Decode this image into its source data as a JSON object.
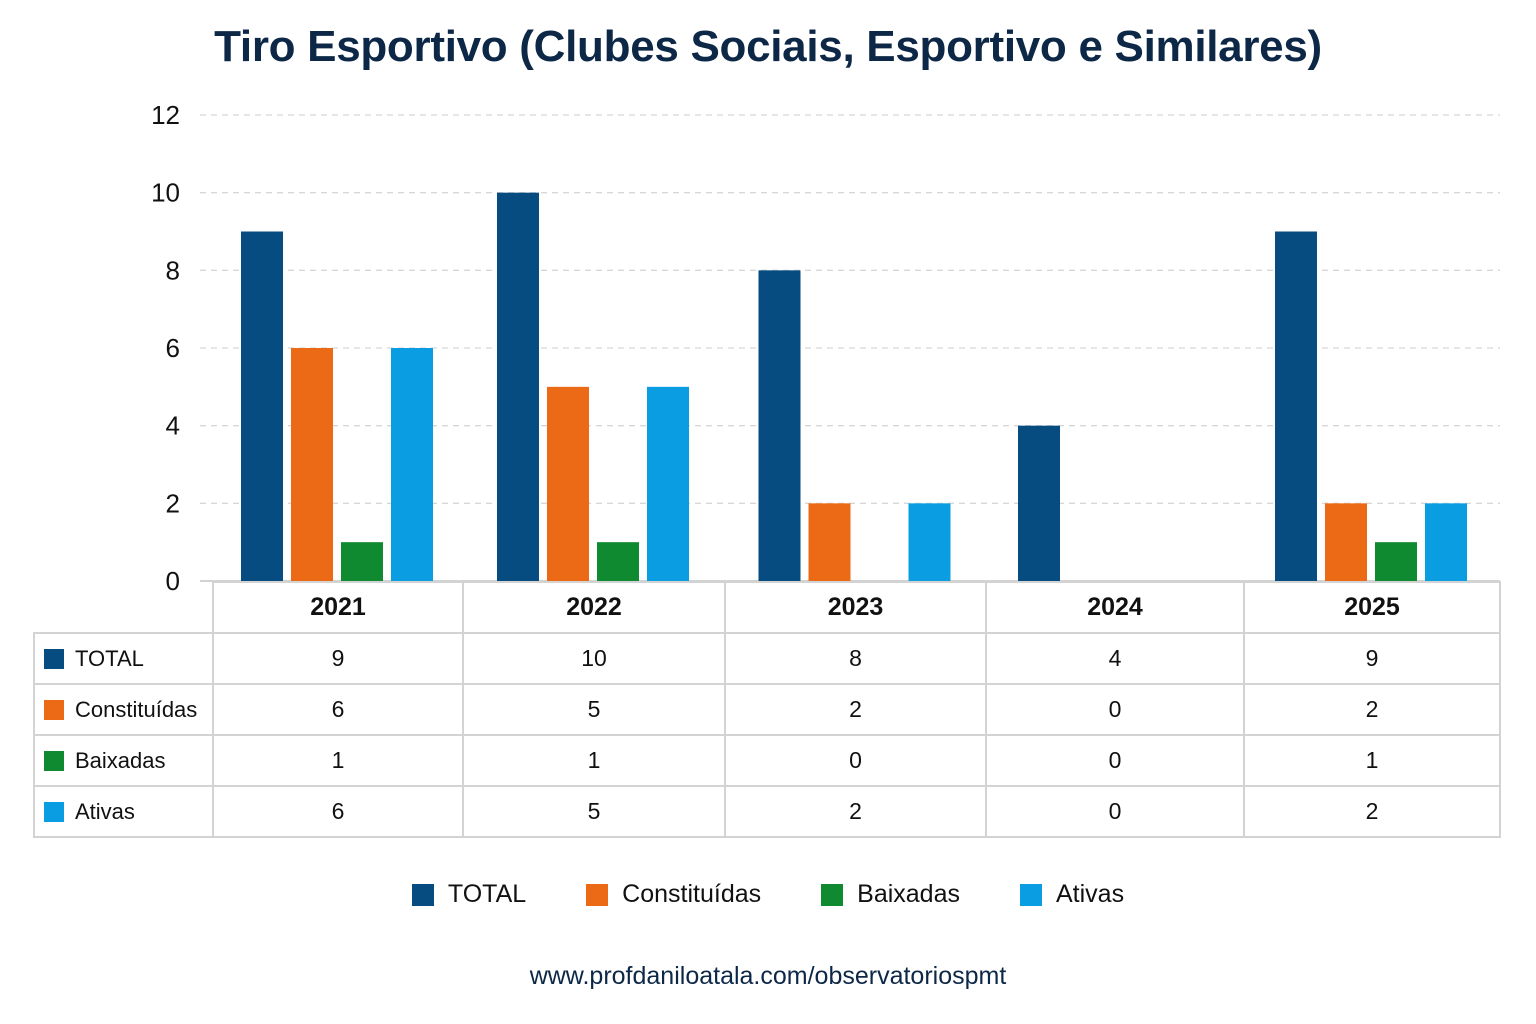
{
  "chart_data": {
    "type": "bar",
    "title": "Tiro Esportivo (Clubes Sociais, Esportivo e Similares)",
    "xlabel": "",
    "ylabel": "",
    "categories": [
      "2021",
      "2022",
      "2023",
      "2024",
      "2025"
    ],
    "series": [
      {
        "name": "TOTAL",
        "values": [
          9,
          10,
          8,
          4,
          9
        ],
        "color": "#064c81"
      },
      {
        "name": "Constituídas",
        "values": [
          6,
          5,
          2,
          0,
          2
        ],
        "color": "#ec6a16"
      },
      {
        "name": "Baixadas",
        "values": [
          1,
          1,
          0,
          0,
          1
        ],
        "color": "#108a30"
      },
      {
        "name": "Ativas",
        "values": [
          6,
          5,
          2,
          0,
          2
        ],
        "color": "#0a9de1"
      }
    ],
    "ylim": [
      0,
      12
    ],
    "yticks": [
      0,
      2,
      4,
      6,
      8,
      10,
      12
    ],
    "grid": true,
    "legend_position": "bottom",
    "data_table": true
  },
  "footer": {
    "url": "www.profdaniloatala.com/observatoriospmt"
  }
}
